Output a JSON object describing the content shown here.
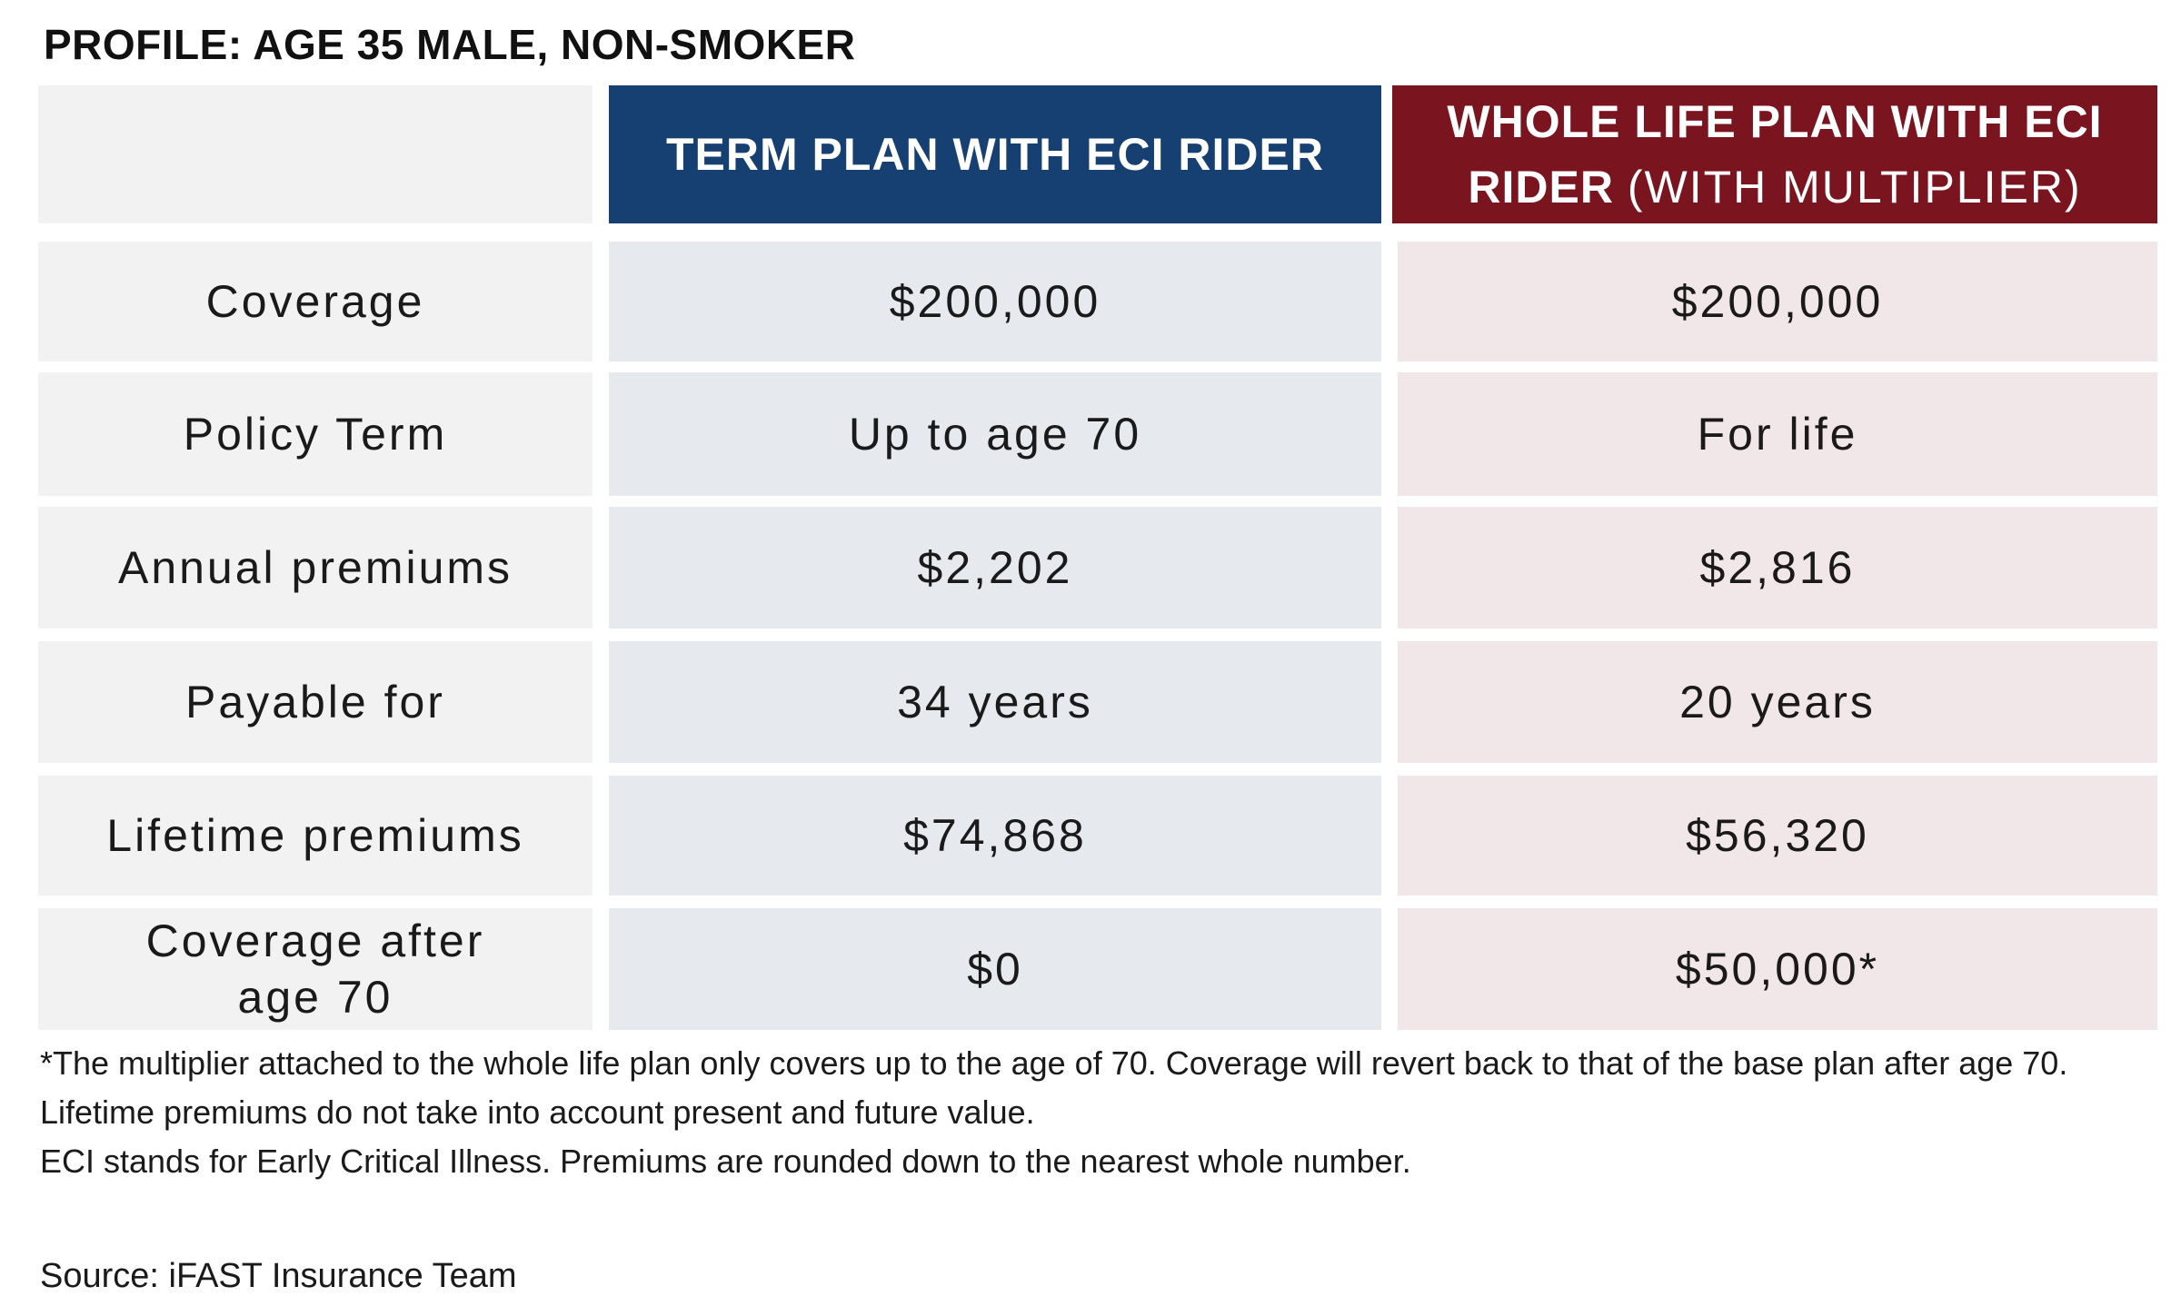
{
  "profile_title": "PROFILE: AGE 35 MALE, NON-SMOKER",
  "headers": {
    "term": "TERM PLAN WITH ECI RIDER",
    "whole_bold": "WHOLE LIFE PLAN WITH ECI RIDER",
    "whole_light": "(WITH MULTIPLIER)"
  },
  "rows": [
    {
      "label": "Coverage",
      "term": "$200,000",
      "whole": "$200,000"
    },
    {
      "label": "Policy Term",
      "term": "Up to age 70",
      "whole": "For life"
    },
    {
      "label": "Annual premiums",
      "term": "$2,202",
      "whole": "$2,816"
    },
    {
      "label": "Payable for",
      "term": "34 years",
      "whole": "20 years"
    },
    {
      "label": "Lifetime premiums",
      "term": "$74,868",
      "whole": "$56,320"
    },
    {
      "label": "Coverage after age 70",
      "term": "$0",
      "whole": "$50,000*"
    }
  ],
  "notes": [
    "*The multiplier attached to the whole life plan only covers up to the age of 70. Coverage will revert back to that of the base plan after age 70.",
    "Lifetime premiums do not take into account present and future value.",
    "ECI stands for Early Critical Illness. Premiums are rounded down to the nearest whole number."
  ],
  "source": "Source: iFAST Insurance Team",
  "colors": {
    "term_header": "#163f72",
    "whole_header": "#7a1520",
    "label_bg": "#f2f2f2",
    "term_bg": "#e6e9ee",
    "whole_bg": "#f1e6e8"
  }
}
